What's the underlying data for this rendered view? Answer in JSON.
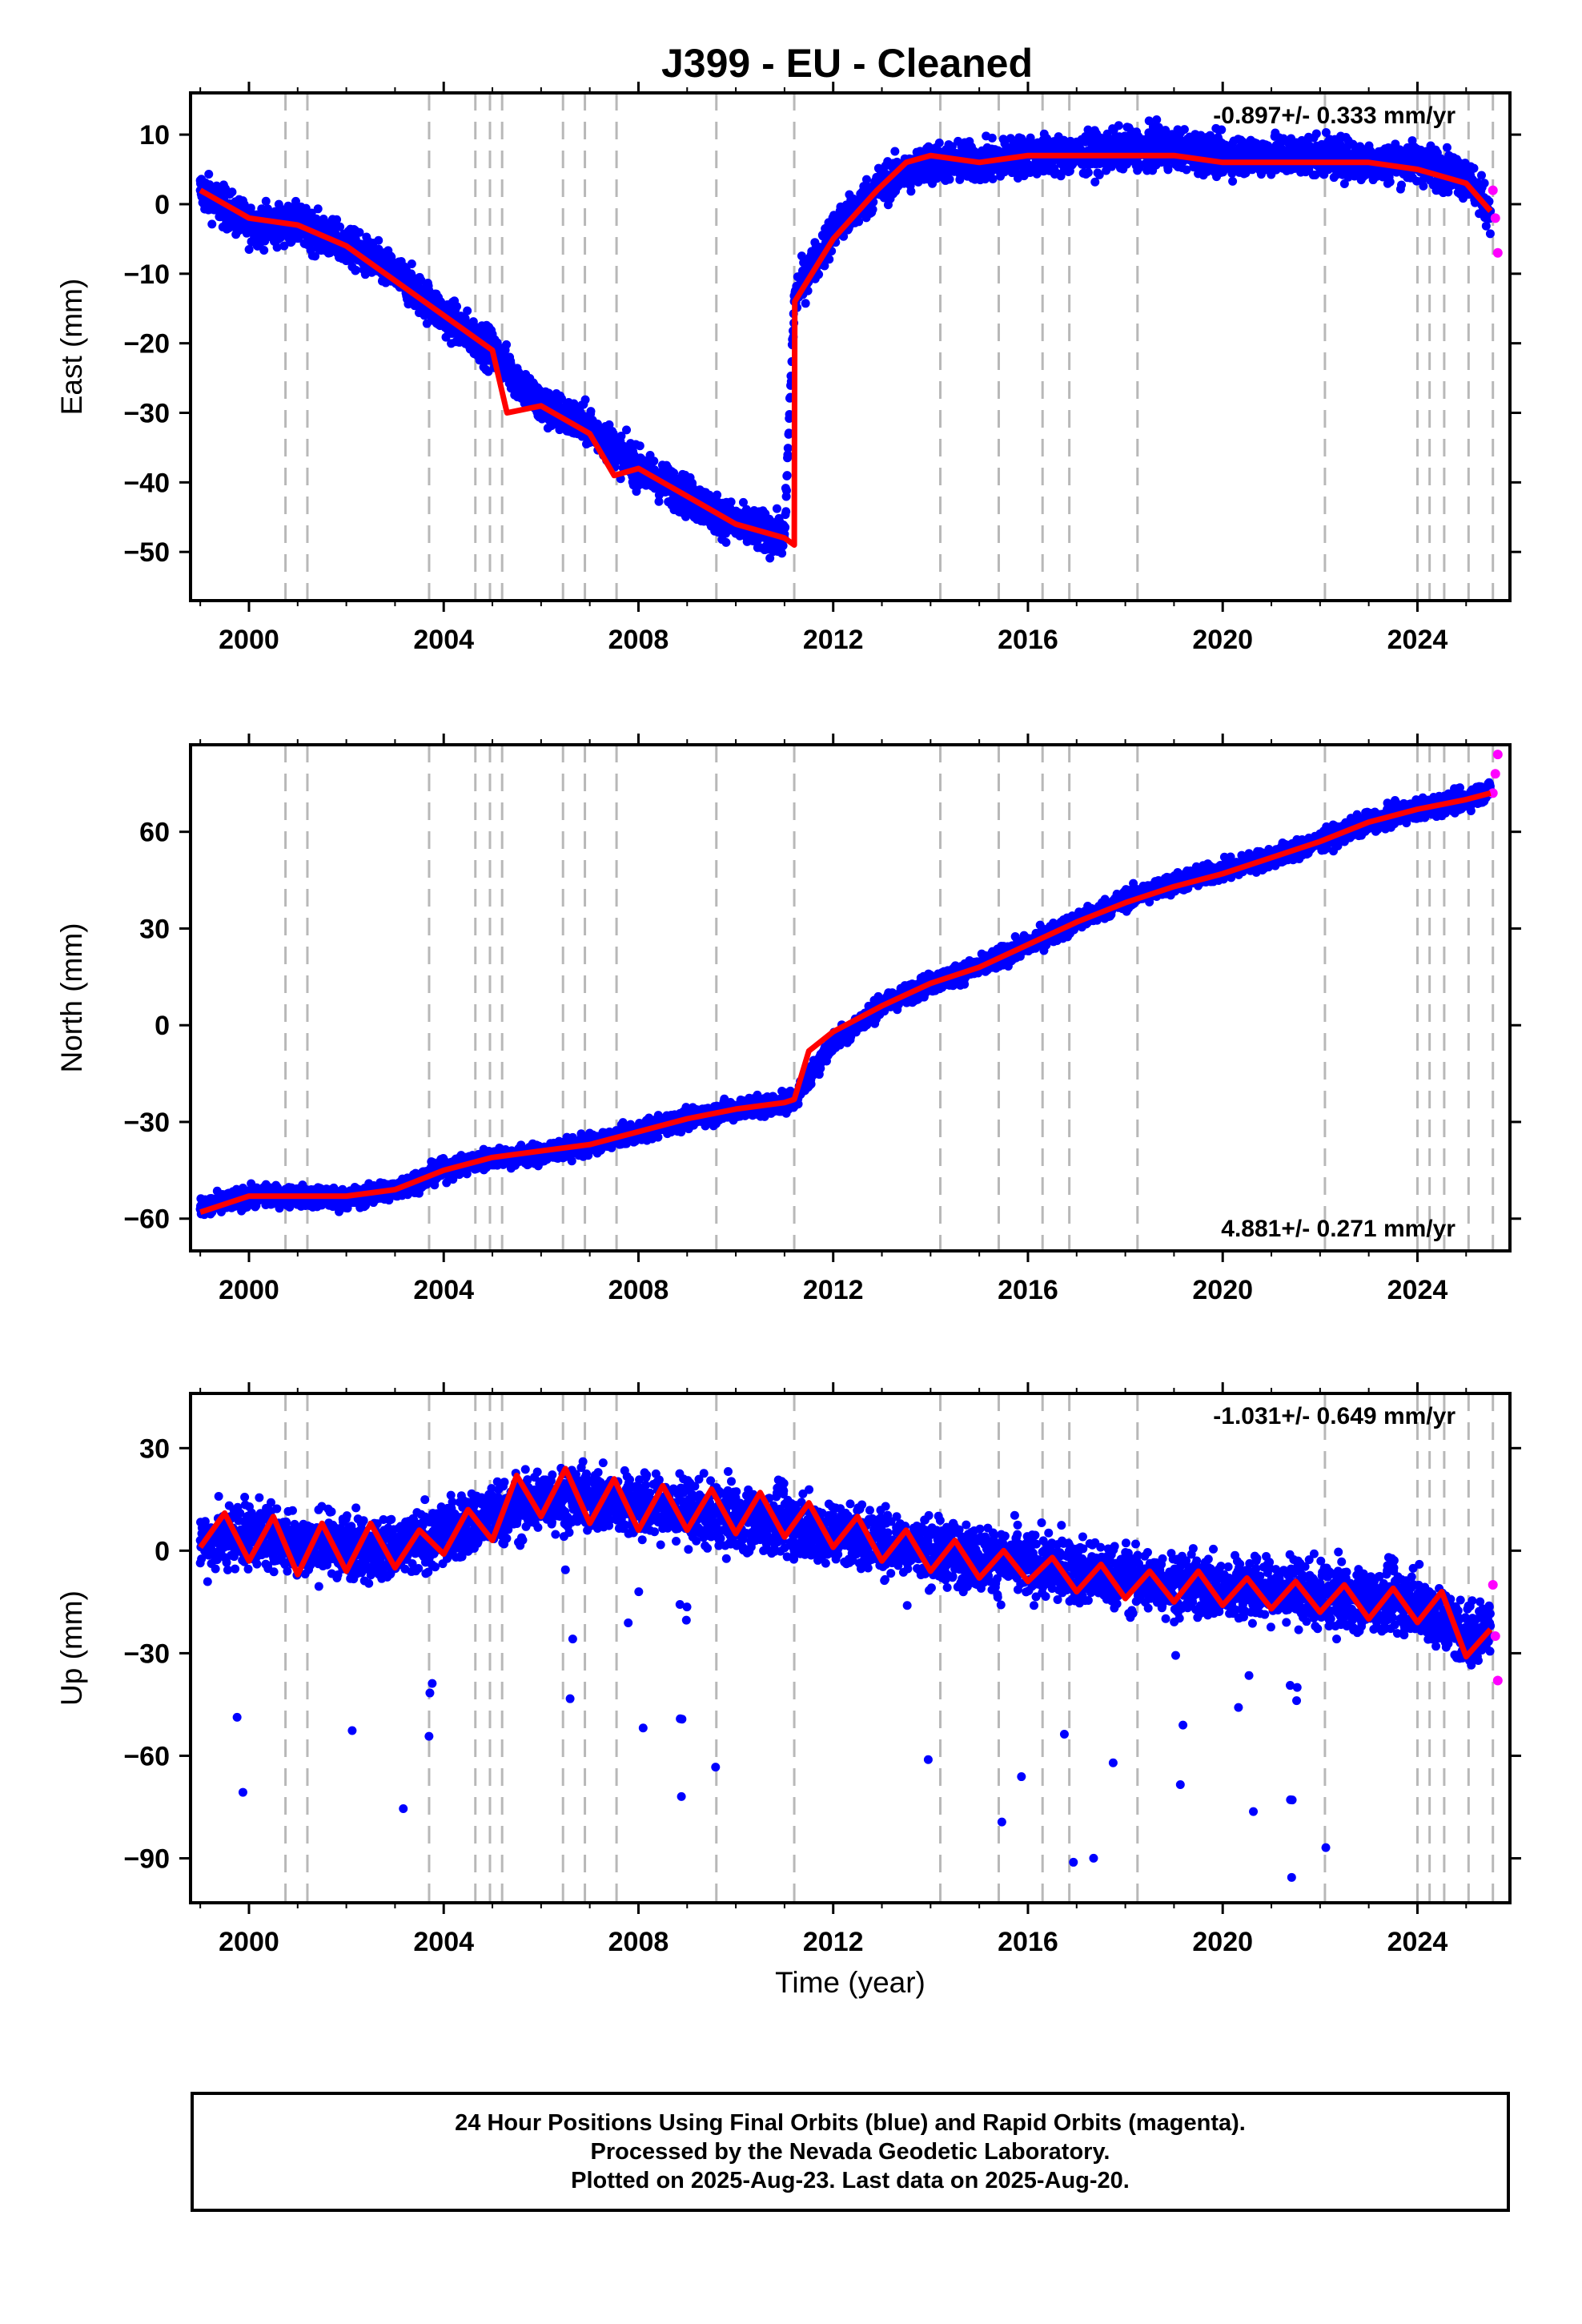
{
  "title": "J399  - EU - Cleaned",
  "chart_data": [
    {
      "type": "scatter",
      "panel": "east",
      "ylabel": "East (mm)",
      "xlabel": "",
      "xlim": [
        1998.8,
        2025.9
      ],
      "ylim": [
        -57,
        16
      ],
      "yticks": [
        10,
        0,
        -10,
        -20,
        -30,
        -40,
        -50
      ],
      "xticks": [
        2000,
        2004,
        2008,
        2012,
        2016,
        2020,
        2024
      ],
      "rate_label": "-0.897+/- 0.333 mm/yr",
      "rate_position": "top-right",
      "grid": false,
      "series": [
        {
          "name": "Final Orbits",
          "color": "#0000ff",
          "style": "points",
          "x": [
            1999.0,
            2000.0,
            2001.0,
            2002.0,
            2003.0,
            2004.0,
            2005.0,
            2006.0,
            2007.0,
            2008.0,
            2009.0,
            2010.0,
            2011.0,
            2011.2,
            2011.3,
            2012.0,
            2013.0,
            2014.0,
            2015.0,
            2016.0,
            2017.0,
            2018.0,
            2019.0,
            2020.0,
            2021.0,
            2022.0,
            2023.0,
            2024.0,
            2025.0,
            2025.5
          ],
          "y": [
            2,
            -3,
            -3,
            -6,
            -10,
            -16,
            -21,
            -29,
            -32,
            -38,
            -42,
            -46,
            -48,
            -14,
            -12,
            -4,
            3,
            6,
            6,
            7,
            7,
            8,
            8,
            7,
            7,
            7,
            6,
            6,
            4,
            -1
          ]
        },
        {
          "name": "Rapid Orbits",
          "color": "#ff00ff",
          "style": "points",
          "x": [
            2025.55,
            2025.6,
            2025.65
          ],
          "y": [
            2,
            -2,
            -7
          ]
        },
        {
          "name": "Model",
          "color": "#ff0000",
          "style": "line",
          "x": [
            1999.0,
            2000.0,
            2001.0,
            2002.0,
            2003.0,
            2004.0,
            2005.0,
            2005.3,
            2006.0,
            2007.0,
            2007.5,
            2008.0,
            2009.0,
            2010.0,
            2011.0,
            2011.2,
            2011.21,
            2012.0,
            2012.9,
            2013.5,
            2014.0,
            2015.0,
            2016.0,
            2017.0,
            2018.0,
            2019.0,
            2020.0,
            2021.0,
            2022.0,
            2023.0,
            2024.0,
            2025.0,
            2025.5
          ],
          "y": [
            2,
            -2,
            -3,
            -6,
            -11,
            -16,
            -21,
            -30,
            -29,
            -33,
            -39,
            -38,
            -42,
            -46,
            -48,
            -49,
            -14,
            -5,
            2,
            6,
            7,
            6,
            7,
            7,
            7,
            7,
            6,
            6,
            6,
            6,
            5,
            3,
            -1
          ]
        }
      ],
      "breaks": [
        2000.75,
        2001.2,
        2003.7,
        2004.65,
        2004.95,
        2005.2,
        2006.45,
        2006.9,
        2007.55,
        2009.6,
        2011.2,
        2014.2,
        2015.4,
        2016.3,
        2016.85,
        2018.25,
        2022.1,
        2024.0,
        2024.25,
        2024.55,
        2025.05,
        2025.55
      ]
    },
    {
      "type": "scatter",
      "panel": "north",
      "ylabel": "North (mm)",
      "xlabel": "",
      "xlim": [
        1998.8,
        2025.9
      ],
      "ylim": [
        -70,
        87
      ],
      "yticks": [
        60,
        30,
        0,
        -30,
        -60
      ],
      "xticks": [
        2000,
        2004,
        2008,
        2012,
        2016,
        2020,
        2024
      ],
      "rate_label": "4.881+/- 0.271 mm/yr",
      "rate_position": "bottom-right",
      "grid": false,
      "series": [
        {
          "name": "Final Orbits",
          "color": "#0000ff",
          "style": "points",
          "x": [
            1999.0,
            2000.0,
            2001.0,
            2002.0,
            2003.0,
            2004.0,
            2005.0,
            2006.0,
            2007.0,
            2008.0,
            2009.0,
            2010.0,
            2011.0,
            2011.2,
            2012.0,
            2013.0,
            2014.0,
            2015.0,
            2016.0,
            2017.0,
            2018.0,
            2019.0,
            2020.0,
            2021.0,
            2022.0,
            2023.0,
            2024.0,
            2025.0,
            2025.5
          ],
          "y": [
            -57,
            -53,
            -53,
            -54,
            -51,
            -45,
            -41,
            -40,
            -37,
            -33,
            -29,
            -26,
            -24,
            -23,
            -5,
            6,
            13,
            18,
            25,
            32,
            39,
            44,
            48,
            52,
            57,
            63,
            67,
            70,
            73
          ]
        },
        {
          "name": "Rapid Orbits",
          "color": "#ff00ff",
          "style": "points",
          "x": [
            2025.55,
            2025.6,
            2025.65
          ],
          "y": [
            72,
            78,
            84
          ]
        },
        {
          "name": "Model",
          "color": "#ff0000",
          "style": "line",
          "x": [
            1999.0,
            2000.0,
            2001.0,
            2002.0,
            2003.0,
            2004.0,
            2005.0,
            2006.0,
            2007.0,
            2008.0,
            2009.0,
            2010.0,
            2011.0,
            2011.2,
            2011.5,
            2012.0,
            2013.0,
            2014.0,
            2015.0,
            2016.0,
            2017.0,
            2018.0,
            2019.0,
            2020.0,
            2021.0,
            2022.0,
            2023.0,
            2024.0,
            2025.0,
            2025.5
          ],
          "y": [
            -58,
            -53,
            -53,
            -53,
            -51,
            -45,
            -41,
            -39,
            -37,
            -33,
            -29,
            -26,
            -24,
            -23,
            -8,
            -2,
            6,
            13,
            18,
            25,
            32,
            38,
            43,
            47,
            52,
            57,
            63,
            67,
            70,
            72
          ]
        }
      ],
      "breaks": [
        2000.75,
        2001.2,
        2003.7,
        2004.65,
        2004.95,
        2005.2,
        2006.45,
        2006.9,
        2007.55,
        2009.6,
        2011.2,
        2014.2,
        2015.4,
        2016.3,
        2016.85,
        2018.25,
        2022.1,
        2024.0,
        2024.25,
        2024.55,
        2025.05,
        2025.55
      ]
    },
    {
      "type": "scatter",
      "panel": "up",
      "ylabel": "Up (mm)",
      "xlabel": "Time (year)",
      "xlim": [
        1998.8,
        2025.9
      ],
      "ylim": [
        -103,
        46
      ],
      "yticks": [
        30,
        0,
        -30,
        -60,
        -90
      ],
      "xticks": [
        2000,
        2004,
        2008,
        2012,
        2016,
        2020,
        2024
      ],
      "rate_label": "-1.031+/- 0.649 mm/yr",
      "rate_position": "top-right",
      "grid": false,
      "series": [
        {
          "name": "Final Orbits",
          "color": "#0000ff",
          "style": "points",
          "x": [
            1999.0,
            2000.0,
            2001.0,
            2002.0,
            2003.0,
            2004.0,
            2005.0,
            2006.0,
            2007.0,
            2008.0,
            2009.0,
            2010.0,
            2011.0,
            2012.0,
            2013.0,
            2014.0,
            2015.0,
            2016.0,
            2017.0,
            2018.0,
            2019.0,
            2020.0,
            2021.0,
            2022.0,
            2023.0,
            2024.0,
            2025.0,
            2025.5
          ],
          "y": [
            3,
            5,
            2,
            2,
            0,
            5,
            10,
            15,
            15,
            13,
            11,
            10,
            8,
            5,
            3,
            0,
            -2,
            -4,
            -6,
            -8,
            -10,
            -11,
            -12,
            -13,
            -14,
            -15,
            -25,
            -22
          ]
        },
        {
          "name": "Rapid Orbits",
          "color": "#ff00ff",
          "style": "points",
          "x": [
            2025.55,
            2025.6,
            2025.65
          ],
          "y": [
            -10,
            -25,
            -38
          ]
        },
        {
          "name": "Model",
          "color": "#ff0000",
          "style": "line",
          "x": [
            1999.0,
            1999.5,
            2000.0,
            2000.5,
            2001.0,
            2001.5,
            2002.0,
            2002.5,
            2003.0,
            2003.5,
            2004.0,
            2004.5,
            2005.0,
            2005.5,
            2006.0,
            2006.5,
            2007.0,
            2007.5,
            2008.0,
            2008.5,
            2009.0,
            2009.5,
            2010.0,
            2010.5,
            2011.0,
            2011.5,
            2012.0,
            2012.5,
            2013.0,
            2013.5,
            2014.0,
            2014.5,
            2015.0,
            2015.5,
            2016.0,
            2016.5,
            2017.0,
            2017.5,
            2018.0,
            2018.5,
            2019.0,
            2019.5,
            2020.0,
            2020.5,
            2021.0,
            2021.5,
            2022.0,
            2022.5,
            2023.0,
            2023.5,
            2024.0,
            2024.5,
            2025.0,
            2025.5
          ],
          "y": [
            1,
            11,
            -3,
            10,
            -7,
            8,
            -6,
            8,
            -5,
            6,
            -1,
            12,
            3,
            22,
            10,
            24,
            8,
            21,
            6,
            19,
            6,
            18,
            5,
            17,
            4,
            14,
            1,
            10,
            -3,
            6,
            -6,
            3,
            -8,
            0,
            -9,
            -2,
            -12,
            -4,
            -14,
            -6,
            -15,
            -6,
            -16,
            -8,
            -17,
            -9,
            -18,
            -10,
            -20,
            -11,
            -21,
            -12,
            -31,
            -23
          ]
        }
      ],
      "breaks": [
        2000.75,
        2001.2,
        2003.7,
        2004.65,
        2004.95,
        2005.2,
        2006.45,
        2006.9,
        2007.55,
        2009.6,
        2011.2,
        2014.2,
        2015.4,
        2016.3,
        2016.85,
        2018.25,
        2022.1,
        2024.0,
        2024.25,
        2024.55,
        2025.05,
        2025.55
      ]
    }
  ],
  "footer": {
    "line1": "24 Hour Positions Using Final Orbits (blue) and Rapid Orbits (magenta).",
    "line2": "Processed by the Nevada Geodetic Laboratory.",
    "line3": "Plotted on 2025-Aug-23. Last data on 2025-Aug-20."
  }
}
